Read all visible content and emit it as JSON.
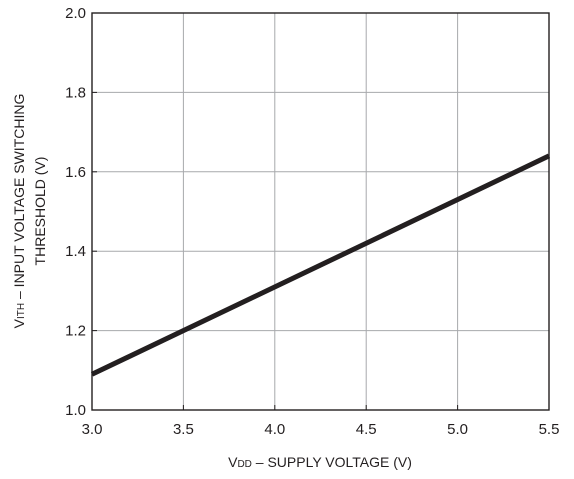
{
  "chart_data": {
    "type": "line",
    "xlabel_parts": {
      "main": "V",
      "sub": "DD",
      "rest": " – SUPPLY VOLTAGE (V)"
    },
    "ylabel_line1_parts": {
      "main": "V",
      "sub": "ITH",
      "rest": " – INPUT VOLTAGE SWITCHING"
    },
    "ylabel_line2": "THRESHOLD (V)",
    "xlim": [
      3.0,
      5.5
    ],
    "ylim": [
      1.0,
      2.0
    ],
    "x_ticks": [
      "3.0",
      "3.5",
      "4.0",
      "4.5",
      "5.0",
      "5.5"
    ],
    "y_ticks": [
      "1.0",
      "1.2",
      "1.4",
      "1.6",
      "1.8",
      "2.0"
    ],
    "grid": true,
    "series": [
      {
        "x": [
          3.0,
          5.5
        ],
        "y": [
          1.09,
          1.64
        ],
        "color": "#231f20"
      }
    ]
  }
}
